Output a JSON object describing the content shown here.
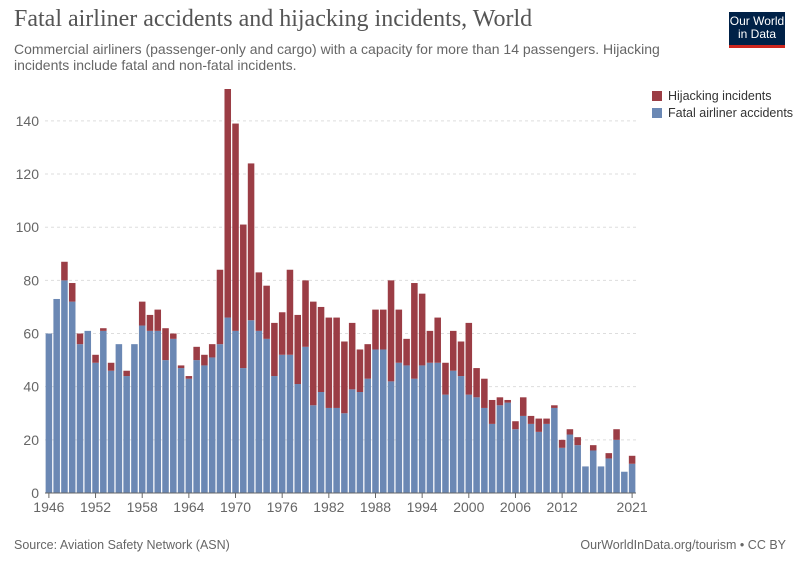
{
  "header": {
    "title": "Fatal airliner accidents and hijacking incidents, World",
    "subtitle": "Commercial airliners (passenger-only and cargo) with a capacity for more than 14 passengers. Hijacking incidents include fatal and non-fatal incidents.",
    "logo_line1": "Our World",
    "logo_line2": "in Data"
  },
  "footer": {
    "source": "Source: Aviation Safety Network (ASN)",
    "credit": "OurWorldInData.org/tourism • CC BY"
  },
  "colors": {
    "fatal": "#6b88b4",
    "hijack": "#9b3d45",
    "grid": "#dddddd",
    "axis": "#666666"
  },
  "chart_data": {
    "type": "bar",
    "stacked": true,
    "title": "Fatal airliner accidents and hijacking incidents, World",
    "xlabel": "",
    "ylabel": "",
    "ylim": [
      0,
      152
    ],
    "yticks": [
      0,
      20,
      40,
      60,
      80,
      100,
      120,
      140
    ],
    "xticks": [
      1946,
      1952,
      1958,
      1964,
      1970,
      1976,
      1982,
      1988,
      1994,
      2000,
      2006,
      2012,
      2021
    ],
    "legend": "top-right",
    "categories": [
      1946,
      1947,
      1948,
      1949,
      1950,
      1951,
      1952,
      1953,
      1954,
      1955,
      1956,
      1957,
      1958,
      1959,
      1960,
      1961,
      1962,
      1963,
      1964,
      1965,
      1966,
      1967,
      1968,
      1969,
      1970,
      1971,
      1972,
      1973,
      1974,
      1975,
      1976,
      1977,
      1978,
      1979,
      1980,
      1981,
      1982,
      1983,
      1984,
      1985,
      1986,
      1987,
      1988,
      1989,
      1990,
      1991,
      1992,
      1993,
      1994,
      1995,
      1996,
      1997,
      1998,
      1999,
      2000,
      2001,
      2002,
      2003,
      2004,
      2005,
      2006,
      2007,
      2008,
      2009,
      2010,
      2011,
      2012,
      2013,
      2014,
      2015,
      2016,
      2017,
      2018,
      2019,
      2020,
      2021
    ],
    "series": [
      {
        "name": "Fatal airliner accidents",
        "values": [
          60,
          73,
          80,
          72,
          56,
          61,
          49,
          61,
          46,
          56,
          44,
          56,
          63,
          61,
          61,
          50,
          58,
          47,
          43,
          50,
          48,
          51,
          56,
          66,
          61,
          47,
          65,
          61,
          58,
          44,
          52,
          52,
          41,
          55,
          33,
          38,
          32,
          32,
          30,
          39,
          38,
          43,
          54,
          54,
          42,
          49,
          48,
          43,
          48,
          49,
          49,
          37,
          46,
          44,
          37,
          36,
          32,
          26,
          33,
          34,
          24,
          29,
          26,
          23,
          26,
          32,
          17,
          22,
          18,
          10,
          16,
          10,
          13,
          20,
          8,
          11
        ]
      },
      {
        "name": "Hijacking incidents",
        "values": [
          0,
          0,
          7,
          7,
          4,
          0,
          3,
          1,
          3,
          0,
          2,
          0,
          9,
          6,
          8,
          12,
          2,
          1,
          1,
          5,
          4,
          5,
          28,
          86,
          78,
          54,
          59,
          22,
          20,
          20,
          16,
          32,
          26,
          25,
          39,
          32,
          34,
          34,
          27,
          25,
          16,
          13,
          15,
          15,
          38,
          20,
          10,
          36,
          27,
          12,
          17,
          12,
          15,
          13,
          27,
          11,
          11,
          9,
          3,
          1,
          3,
          7,
          3,
          5,
          2,
          1,
          3,
          2,
          3,
          0,
          2,
          0,
          2,
          4,
          0,
          3
        ]
      }
    ]
  }
}
